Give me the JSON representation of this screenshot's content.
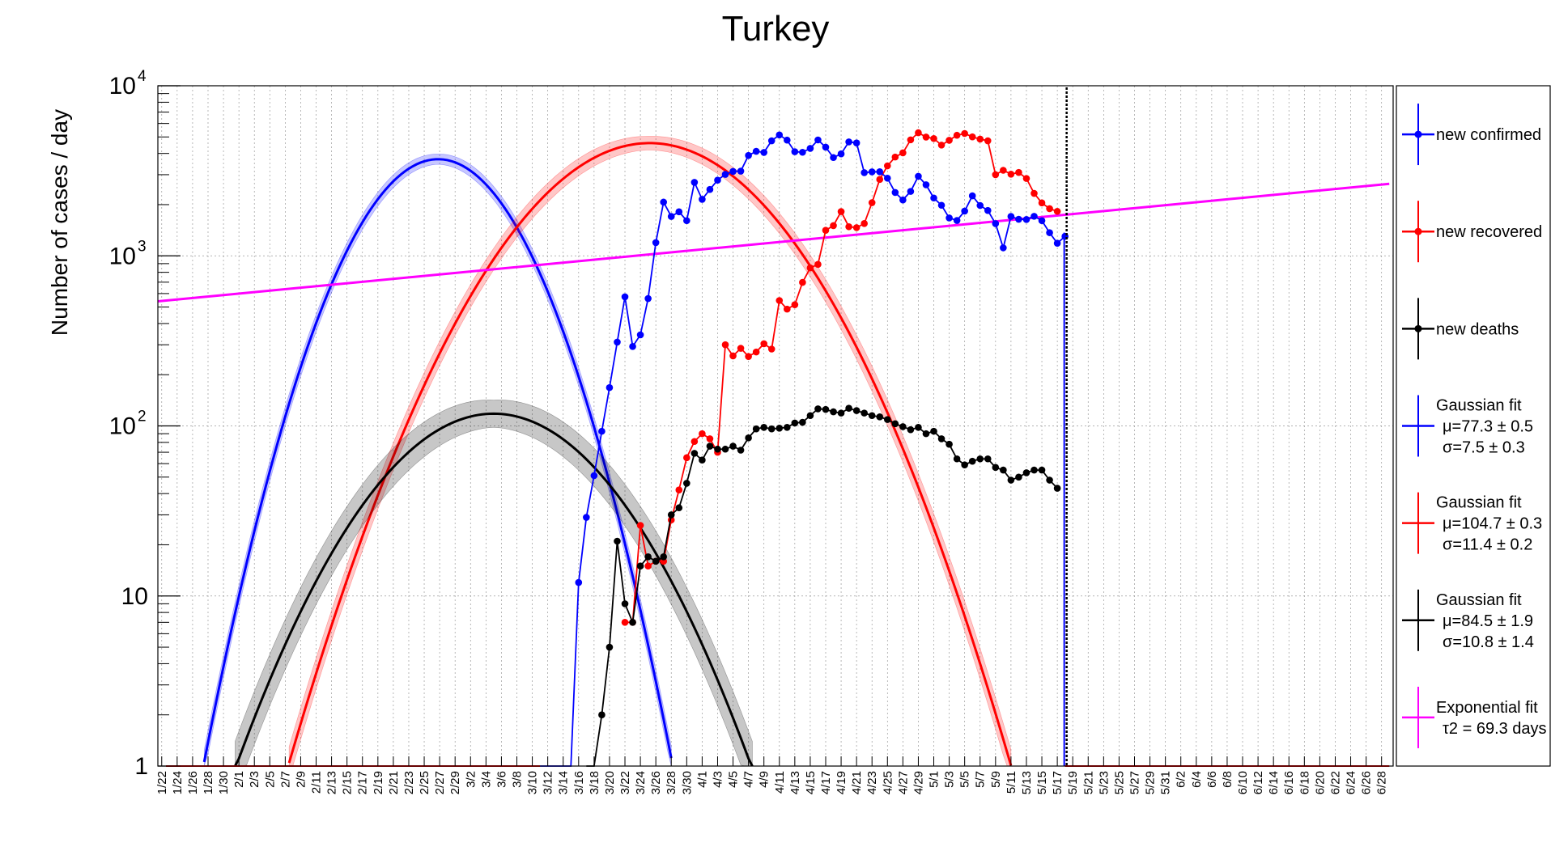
{
  "chart_data": {
    "type": "line",
    "title": "Turkey",
    "ylabel": "Number of cases / day",
    "xlabel": "",
    "y_scale": "log",
    "ylim": [
      1,
      10000
    ],
    "y_ticks": [
      {
        "value": 1,
        "base": "1",
        "exp": ""
      },
      {
        "value": 10,
        "base": "10",
        "exp": ""
      },
      {
        "value": 100,
        "base": "10",
        "exp": "2"
      },
      {
        "value": 1000,
        "base": "10",
        "exp": "3"
      },
      {
        "value": 10000,
        "base": "10",
        "exp": "4"
      }
    ],
    "x_tick_labels": [
      "1/22",
      "1/24",
      "1/26",
      "1/28",
      "1/30",
      "2/1",
      "2/3",
      "2/5",
      "2/7",
      "2/9",
      "2/11",
      "2/13",
      "2/15",
      "2/17",
      "2/19",
      "2/21",
      "2/23",
      "2/25",
      "2/27",
      "2/29",
      "3/2",
      "3/4",
      "3/6",
      "3/8",
      "3/10",
      "3/12",
      "3/14",
      "3/16",
      "3/18",
      "3/20",
      "3/22",
      "3/24",
      "3/26",
      "3/28",
      "3/30",
      "4/1",
      "4/3",
      "4/5",
      "4/7",
      "4/9",
      "4/11",
      "4/13",
      "4/15",
      "4/17",
      "4/19",
      "4/21",
      "4/23",
      "4/25",
      "4/27",
      "4/29",
      "5/1",
      "5/3",
      "5/5",
      "5/7",
      "5/9",
      "5/11",
      "5/13",
      "5/15",
      "5/17",
      "5/19",
      "5/21",
      "5/23",
      "5/25",
      "5/27",
      "5/29",
      "5/31",
      "6/2",
      "6/4",
      "6/6",
      "6/8",
      "6/10",
      "6/12",
      "6/14",
      "6/16",
      "6/18",
      "6/20",
      "6/22",
      "6/24",
      "6/26",
      "6/28"
    ],
    "grid": true,
    "legend_position": "right",
    "vertical_marker_date": "5/18",
    "colors": {
      "confirmed": "#0000ff",
      "recovered": "#ff0000",
      "deaths": "#000000",
      "exponential": "#ff00ff"
    },
    "series": [
      {
        "name": "new confirmed",
        "color": "#0000ff",
        "x": [
          "3/11",
          "3/12",
          "3/13",
          "3/14",
          "3/15",
          "3/16",
          "3/17",
          "3/18",
          "3/19",
          "3/20",
          "3/21",
          "3/22",
          "3/23",
          "3/24",
          "3/25",
          "3/26",
          "3/27",
          "3/28",
          "3/29",
          "3/30",
          "3/31",
          "4/1",
          "4/2",
          "4/3",
          "4/4",
          "4/5",
          "4/6",
          "4/7",
          "4/8",
          "4/9",
          "4/10",
          "4/11",
          "4/12",
          "4/13",
          "4/14",
          "4/15",
          "4/16",
          "4/17",
          "4/18",
          "4/19",
          "4/20",
          "4/21",
          "4/22",
          "4/23",
          "4/24",
          "4/25",
          "4/26",
          "4/27",
          "4/28",
          "4/29",
          "4/30",
          "5/1",
          "5/2",
          "5/3",
          "5/4",
          "5/5",
          "5/6",
          "5/7",
          "5/8",
          "5/9",
          "5/10",
          "5/11",
          "5/12",
          "5/13",
          "5/14",
          "5/15",
          "5/16",
          "5/17",
          "5/18"
        ],
        "y": [
          1,
          1,
          1,
          1,
          1,
          12,
          29,
          51,
          93,
          168,
          311,
          574,
          293,
          343,
          561,
          1196,
          2069,
          1704,
          1815,
          1610,
          2704,
          2148,
          2456,
          2786,
          3013,
          3135,
          3148,
          3892,
          4117,
          4056,
          4747,
          5138,
          4789,
          4093,
          4062,
          4281,
          4801,
          4353,
          3783,
          3977,
          4674,
          4611,
          3083,
          3116,
          3122,
          2861,
          2357,
          2131,
          2392,
          2936,
          2615,
          2188,
          1983,
          1670,
          1614,
          1832,
          2253,
          1977,
          1848,
          1546,
          1114,
          1704,
          1641,
          1635,
          1708,
          1610,
          1368,
          1186,
          1301
        ]
      },
      {
        "name": "new recovered",
        "color": "#ff0000",
        "x": [
          "3/22",
          "3/23",
          "3/24",
          "3/25",
          "3/26",
          "3/27",
          "3/28",
          "3/29",
          "3/30",
          "3/31",
          "4/1",
          "4/2",
          "4/3",
          "4/4",
          "4/5",
          "4/6",
          "4/7",
          "4/8",
          "4/9",
          "4/10",
          "4/11",
          "4/12",
          "4/13",
          "4/14",
          "4/15",
          "4/16",
          "4/17",
          "4/18",
          "4/19",
          "4/20",
          "4/21",
          "4/22",
          "4/23",
          "4/24",
          "4/25",
          "4/26",
          "4/27",
          "4/28",
          "4/29",
          "4/30",
          "5/1",
          "5/2",
          "5/3",
          "5/4",
          "5/5",
          "5/6",
          "5/7",
          "5/8",
          "5/9",
          "5/10",
          "5/11",
          "5/12",
          "5/13",
          "5/14",
          "5/15",
          "5/16",
          "5/17"
        ],
        "y": [
          7,
          7,
          26,
          15,
          16,
          16,
          28,
          42,
          65,
          81,
          90,
          84,
          70,
          300,
          258,
          286,
          256,
          272,
          304,
          283,
          546,
          486,
          516,
          698,
          849,
          891,
          1413,
          1505,
          1820,
          1483,
          1465,
          1549,
          2054,
          2812,
          3381,
          3809,
          4031,
          4807,
          5292,
          4993,
          4894,
          4477,
          4780,
          5114,
          5240,
          5005,
          4857,
          4747,
          3001,
          3184,
          3021,
          3092,
          2850,
          2329,
          2047,
          1894,
          1826
        ]
      },
      {
        "name": "new deaths",
        "color": "#000000",
        "x": [
          "3/17",
          "3/18",
          "3/19",
          "3/20",
          "3/21",
          "3/22",
          "3/23",
          "3/24",
          "3/25",
          "3/26",
          "3/27",
          "3/28",
          "3/29",
          "3/30",
          "3/31",
          "4/1",
          "4/2",
          "4/3",
          "4/4",
          "4/5",
          "4/6",
          "4/7",
          "4/8",
          "4/9",
          "4/10",
          "4/11",
          "4/12",
          "4/13",
          "4/14",
          "4/15",
          "4/16",
          "4/17",
          "4/18",
          "4/19",
          "4/20",
          "4/21",
          "4/22",
          "4/23",
          "4/24",
          "4/25",
          "4/26",
          "4/27",
          "4/28",
          "4/29",
          "4/30",
          "5/1",
          "5/2",
          "5/3",
          "5/4",
          "5/5",
          "5/6",
          "5/7",
          "5/8",
          "5/9",
          "5/10",
          "5/11",
          "5/12",
          "5/13",
          "5/14",
          "5/15",
          "5/16",
          "5/17"
        ],
        "y": [
          1,
          1,
          2,
          5,
          21,
          9,
          7,
          15,
          17,
          16,
          17,
          30,
          33,
          46,
          69,
          63,
          76,
          73,
          73,
          76,
          72,
          85,
          96,
          98,
          96,
          97,
          98,
          104,
          105,
          115,
          126,
          125,
          121,
          119,
          127,
          123,
          119,
          115,
          113,
          109,
          103,
          99,
          95,
          98,
          90,
          93,
          84,
          78,
          64,
          59,
          62,
          64,
          64,
          57,
          55,
          48,
          50,
          53,
          55,
          55,
          48,
          43
        ]
      },
      {
        "name": "Gaussian fit",
        "color": "#0000ff",
        "fit": "gaussian",
        "mu": 77.3,
        "mu_err": 0.5,
        "sigma": 7.5,
        "sigma_err": 0.3
      },
      {
        "name": "Gaussian fit",
        "color": "#ff0000",
        "fit": "gaussian",
        "mu": 104.7,
        "mu_err": 0.3,
        "sigma": 11.4,
        "sigma_err": 0.2
      },
      {
        "name": "Gaussian fit",
        "color": "#000000",
        "fit": "gaussian",
        "mu": 84.5,
        "mu_err": 1.9,
        "sigma": 10.8,
        "sigma_err": 1.4
      },
      {
        "name": "Exponential fit",
        "color": "#ff00ff",
        "fit": "exponential",
        "tau2_days": 69.3,
        "y_start_1_22": 540,
        "y_end_6_29": 2650
      }
    ],
    "legend": [
      {
        "lines": [
          "new confirmed"
        ],
        "color": "#0000ff",
        "marker": true
      },
      {
        "lines": [
          "new recovered"
        ],
        "color": "#ff0000",
        "marker": true
      },
      {
        "lines": [
          "new deaths"
        ],
        "color": "#000000",
        "marker": true
      },
      {
        "lines": [
          "Gaussian fit",
          "μ=77.3 ± 0.5",
          "σ=7.5 ± 0.3"
        ],
        "color": "#0000ff",
        "marker": false
      },
      {
        "lines": [
          "Gaussian fit",
          "μ=104.7 ± 0.3",
          "σ=11.4 ± 0.2"
        ],
        "color": "#ff0000",
        "marker": false
      },
      {
        "lines": [
          "Gaussian fit",
          "μ=84.5 ± 1.9",
          "σ=10.8 ± 1.4"
        ],
        "color": "#000000",
        "marker": false
      },
      {
        "lines": [
          "Exponential fit",
          "τ2 = 69.3 days"
        ],
        "color": "#ff00ff",
        "marker": false
      }
    ]
  }
}
